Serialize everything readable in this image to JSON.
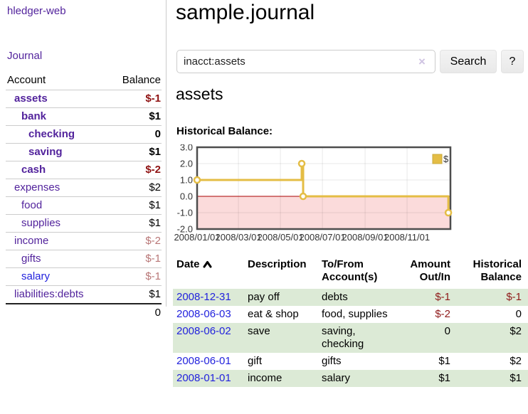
{
  "app": {
    "title": "hledger-web"
  },
  "sidebar": {
    "journal_link": "Journal",
    "accounts_table": {
      "headers": [
        "Account",
        "Balance"
      ],
      "rows": [
        {
          "account": "assets",
          "indent": 1,
          "bold": true,
          "link": "purple",
          "balance": "$-1",
          "balance_class": "neg-strong"
        },
        {
          "account": "bank",
          "indent": 2,
          "bold": true,
          "link": "purple",
          "balance": "$1",
          "balance_class": ""
        },
        {
          "account": "checking",
          "indent": 3,
          "bold": true,
          "link": "purple",
          "balance": "0",
          "balance_class": ""
        },
        {
          "account": "saving",
          "indent": 3,
          "bold": true,
          "link": "purple",
          "balance": "$1",
          "balance_class": ""
        },
        {
          "account": "cash",
          "indent": 2,
          "bold": true,
          "link": "purple",
          "balance": "$-2",
          "balance_class": "neg-strong"
        },
        {
          "account": "expenses",
          "indent": 1,
          "bold": false,
          "link": "purple",
          "balance": "$2",
          "balance_class": ""
        },
        {
          "account": "food",
          "indent": 2,
          "bold": false,
          "link": "purple",
          "balance": "$1",
          "balance_class": ""
        },
        {
          "account": "supplies",
          "indent": 2,
          "bold": false,
          "link": "purple",
          "balance": "$1",
          "balance_class": ""
        },
        {
          "account": "income",
          "indent": 1,
          "bold": false,
          "link": "purple",
          "balance": "$-2",
          "balance_class": "neg-soft"
        },
        {
          "account": "gifts",
          "indent": 2,
          "bold": false,
          "link": "purple",
          "balance": "$-1",
          "balance_class": "neg-soft"
        },
        {
          "account": "salary",
          "indent": 2,
          "bold": false,
          "link": "blue",
          "balance": "$-1",
          "balance_class": "neg-soft"
        },
        {
          "account": "liabilities:debts",
          "indent": 1,
          "bold": false,
          "link": "purple",
          "balance": "$1",
          "balance_class": ""
        }
      ],
      "total": "0"
    }
  },
  "main": {
    "title": "sample.journal",
    "search": {
      "value": "inacct:assets",
      "clear_icon": "×",
      "button_label": "Search",
      "help_label": "?"
    },
    "account_heading": "assets",
    "chart_label": "Historical Balance:"
  },
  "chart_data": {
    "type": "line",
    "step": true,
    "title": "Historical Balance",
    "xrange": [
      "2008-01-01",
      "2009-01-03"
    ],
    "ylim": [
      -2,
      3
    ],
    "yticks": [
      3.0,
      2.0,
      1.0,
      0.0,
      -1.0,
      -2.0
    ],
    "xticks": [
      "2008/01/01",
      "2008/03/01",
      "2008/05/01",
      "2008/07/01",
      "2008/09/01",
      "2008/11/01"
    ],
    "series": [
      {
        "name": "$",
        "color": "#e4bd45",
        "points": [
          [
            "2008-01-01",
            1
          ],
          [
            "2008-06-01",
            2
          ],
          [
            "2008-06-03",
            0
          ],
          [
            "2008-12-31",
            -1
          ]
        ]
      }
    ],
    "legend": {
      "label": "$",
      "position": "top-right"
    },
    "negative_region": {
      "fill": "#fbdbdb",
      "zero_line_color": "#aa0000"
    },
    "grid": true
  },
  "transactions": {
    "headers": [
      "Date",
      "Description",
      "To/From Account(s)",
      "Amount Out/In",
      "Historical Balance"
    ],
    "sort_icon": "chevron-up",
    "rows": [
      {
        "date": "2008-12-31",
        "description": "pay off",
        "accounts": "debts",
        "amount": "$-1",
        "amount_neg": true,
        "balance": "$-1",
        "balance_neg": true
      },
      {
        "date": "2008-06-03",
        "description": "eat & shop",
        "accounts": "food, supplies",
        "amount": "$-2",
        "amount_neg": true,
        "balance": "0",
        "balance_neg": false
      },
      {
        "date": "2008-06-02",
        "description": "save",
        "accounts": "saving, checking",
        "amount": "0",
        "amount_neg": false,
        "balance": "$2",
        "balance_neg": false
      },
      {
        "date": "2008-06-01",
        "description": "gift",
        "accounts": "gifts",
        "amount": "$1",
        "amount_neg": false,
        "balance": "$2",
        "balance_neg": false
      },
      {
        "date": "2008-01-01",
        "description": "income",
        "accounts": "salary",
        "amount": "$1",
        "amount_neg": false,
        "balance": "$1",
        "balance_neg": false
      }
    ]
  },
  "colors": {
    "link_purple": "#52239c",
    "link_blue": "#2222dd",
    "negative_strong": "#8f1212",
    "negative_soft": "#b87676",
    "row_green": "#dcead6",
    "chart_line": "#e4bd45",
    "chart_negative_fill": "#fbdbdb",
    "chart_zero_line": "#aa0000"
  }
}
